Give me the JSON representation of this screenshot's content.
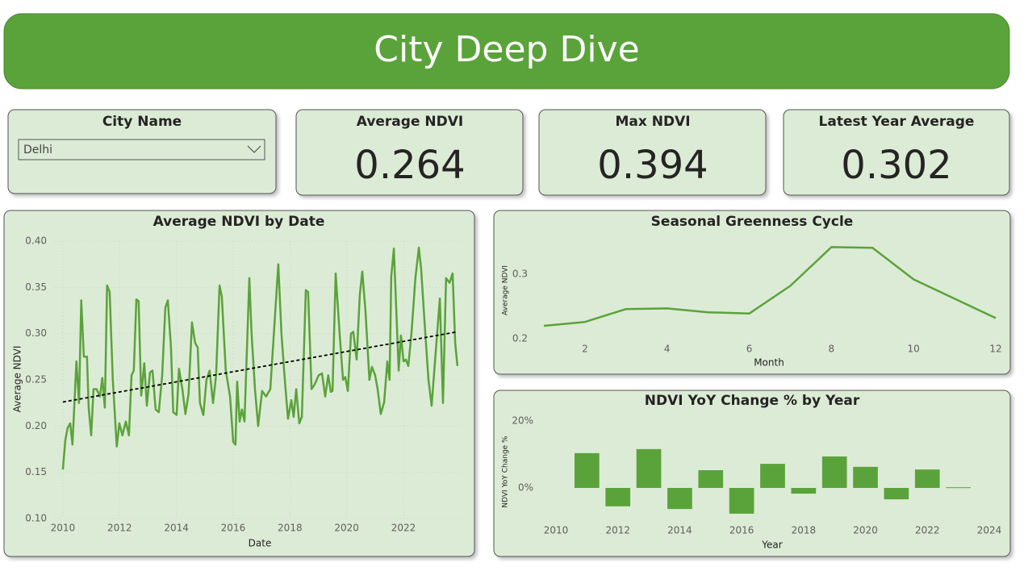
{
  "header": {
    "title": "City Deep Dive"
  },
  "slicer": {
    "label": "City Name",
    "selected": "Delhi"
  },
  "cards": [
    {
      "label": "Average NDVI",
      "value": 0.264
    },
    {
      "label": "Max NDVI",
      "value": 0.394
    },
    {
      "label": "Latest Year Average",
      "value": 0.302
    }
  ],
  "chart_data": [
    {
      "type": "line",
      "title": "Average NDVI by Date",
      "x_label": "Date",
      "y_label": "Average NDVI",
      "color": "#5aa33a",
      "grid": true,
      "x": [
        2010.0,
        2010.09,
        2010.17,
        2010.26,
        2010.34,
        2010.48,
        2010.57,
        2010.65,
        2010.74,
        2010.85,
        2010.91,
        2011.0,
        2011.08,
        2011.19,
        2011.31,
        2011.39,
        2011.48,
        2011.56,
        2011.65,
        2011.76,
        2011.9,
        2011.99,
        2012.1,
        2012.22,
        2012.33,
        2012.42,
        2012.5,
        2012.59,
        2012.67,
        2012.76,
        2012.87,
        2012.96,
        2013.07,
        2013.16,
        2013.27,
        2013.38,
        2013.5,
        2013.61,
        2013.7,
        2013.81,
        2013.89,
        2014.01,
        2014.09,
        2014.21,
        2014.32,
        2014.43,
        2014.55,
        2014.66,
        2014.75,
        2014.83,
        2014.95,
        2015.06,
        2015.17,
        2015.29,
        2015.4,
        2015.52,
        2015.6,
        2015.74,
        2015.89,
        2016.0,
        2016.08,
        2016.14,
        2016.23,
        2016.31,
        2016.4,
        2016.57,
        2016.65,
        2016.77,
        2016.88,
        2017.02,
        2017.16,
        2017.31,
        2017.59,
        2017.7,
        2017.82,
        2017.93,
        2018.05,
        2018.13,
        2018.22,
        2018.33,
        2018.42,
        2018.56,
        2018.64,
        2018.76,
        2018.87,
        2019.01,
        2019.13,
        2019.24,
        2019.35,
        2019.44,
        2019.5,
        2019.61,
        2019.75,
        2019.87,
        2019.95,
        2020.04,
        2020.15,
        2020.23,
        2020.35,
        2020.46,
        2020.55,
        2020.66,
        2020.8,
        2020.89,
        2021.0,
        2021.09,
        2021.2,
        2021.32,
        2021.43,
        2021.51,
        2021.57,
        2021.66,
        2021.74,
        2021.83,
        2021.91,
        2022.0,
        2022.08,
        2022.17,
        2022.28,
        2022.42,
        2022.54,
        2022.62,
        2022.77,
        2022.88,
        2022.99,
        2023.11,
        2023.28,
        2023.39,
        2023.5,
        2023.62,
        2023.73,
        2023.82,
        2023.9
      ],
      "values": [
        0.153,
        0.185,
        0.198,
        0.203,
        0.18,
        0.27,
        0.225,
        0.336,
        0.275,
        0.275,
        0.22,
        0.19,
        0.24,
        0.24,
        0.232,
        0.252,
        0.22,
        0.352,
        0.345,
        0.25,
        0.178,
        0.203,
        0.19,
        0.205,
        0.19,
        0.255,
        0.26,
        0.337,
        0.335,
        0.233,
        0.268,
        0.222,
        0.258,
        0.26,
        0.218,
        0.215,
        0.255,
        0.328,
        0.336,
        0.285,
        0.215,
        0.212,
        0.262,
        0.24,
        0.213,
        0.235,
        0.312,
        0.29,
        0.285,
        0.225,
        0.212,
        0.25,
        0.26,
        0.225,
        0.255,
        0.352,
        0.34,
        0.26,
        0.232,
        0.183,
        0.18,
        0.248,
        0.205,
        0.218,
        0.205,
        0.36,
        0.3,
        0.24,
        0.2,
        0.238,
        0.232,
        0.24,
        0.375,
        0.3,
        0.25,
        0.208,
        0.228,
        0.21,
        0.24,
        0.203,
        0.21,
        0.347,
        0.345,
        0.24,
        0.245,
        0.255,
        0.257,
        0.232,
        0.255,
        0.237,
        0.238,
        0.365,
        0.3,
        0.25,
        0.253,
        0.238,
        0.3,
        0.302,
        0.272,
        0.342,
        0.367,
        0.325,
        0.25,
        0.264,
        0.255,
        0.24,
        0.213,
        0.226,
        0.27,
        0.25,
        0.362,
        0.392,
        0.33,
        0.26,
        0.298,
        0.27,
        0.272,
        0.265,
        0.3,
        0.36,
        0.393,
        0.37,
        0.3,
        0.25,
        0.222,
        0.27,
        0.338,
        0.225,
        0.36,
        0.355,
        0.365,
        0.29,
        0.265
      ],
      "trend": {
        "x": [
          2010.0,
          2023.9
        ],
        "values": [
          0.226,
          0.302
        ],
        "color": "#000000"
      },
      "xlim": [
        2009.72,
        2024.13
      ],
      "xticks": [
        2010,
        2012,
        2014,
        2016,
        2018,
        2020,
        2022
      ],
      "ylim": [
        0.1,
        0.4
      ],
      "yticks": [
        {
          "value": 0.1,
          "label": "0.10"
        },
        0.15,
        {
          "value": 0.2,
          "label": "0.20"
        },
        0.25,
        {
          "value": 0.3,
          "label": "0.30"
        },
        0.35,
        {
          "value": 0.4,
          "label": "0.40"
        }
      ]
    },
    {
      "type": "line",
      "title": "Seasonal Greenness Cycle",
      "x_label": "Month",
      "y_label": "Average NDVI",
      "color": "#5aa33a",
      "grid": false,
      "x": [
        1,
        2,
        3,
        4,
        5,
        6,
        7,
        8,
        9,
        10,
        11,
        12
      ],
      "values": [
        0.22,
        0.226,
        0.246,
        0.247,
        0.241,
        0.239,
        0.282,
        0.342,
        0.341,
        0.292,
        0.262,
        0.232
      ],
      "xlim": [
        1,
        12
      ],
      "xticks": [
        2,
        4,
        6,
        8,
        10,
        12
      ],
      "ylim": [
        0.2,
        0.35
      ],
      "yticks": [
        0.2,
        0.3
      ]
    },
    {
      "type": "bar",
      "title": "NDVI YoY Change % by Year",
      "x_label": "Year",
      "y_label": "NDVI YoY Change %",
      "color": "#5aa33a",
      "grid": false,
      "x": [
        2011,
        2012,
        2013,
        2014,
        2015,
        2016,
        2017,
        2018,
        2019,
        2020,
        2021,
        2022,
        2023
      ],
      "values": [
        10.4,
        -5.5,
        11.6,
        -6.3,
        5.3,
        -7.7,
        7.2,
        -1.7,
        9.4,
        6.3,
        -3.4,
        5.5,
        0.2
      ],
      "xlim": [
        2010,
        2024
      ],
      "xticks": [
        2010,
        2012,
        2014,
        2016,
        2018,
        2020,
        2022,
        2024
      ],
      "ylim": [
        -10,
        20
      ],
      "yticks": [
        {
          "value": 0,
          "label": "0%"
        },
        {
          "value": 20,
          "label": "20%"
        }
      ]
    }
  ]
}
